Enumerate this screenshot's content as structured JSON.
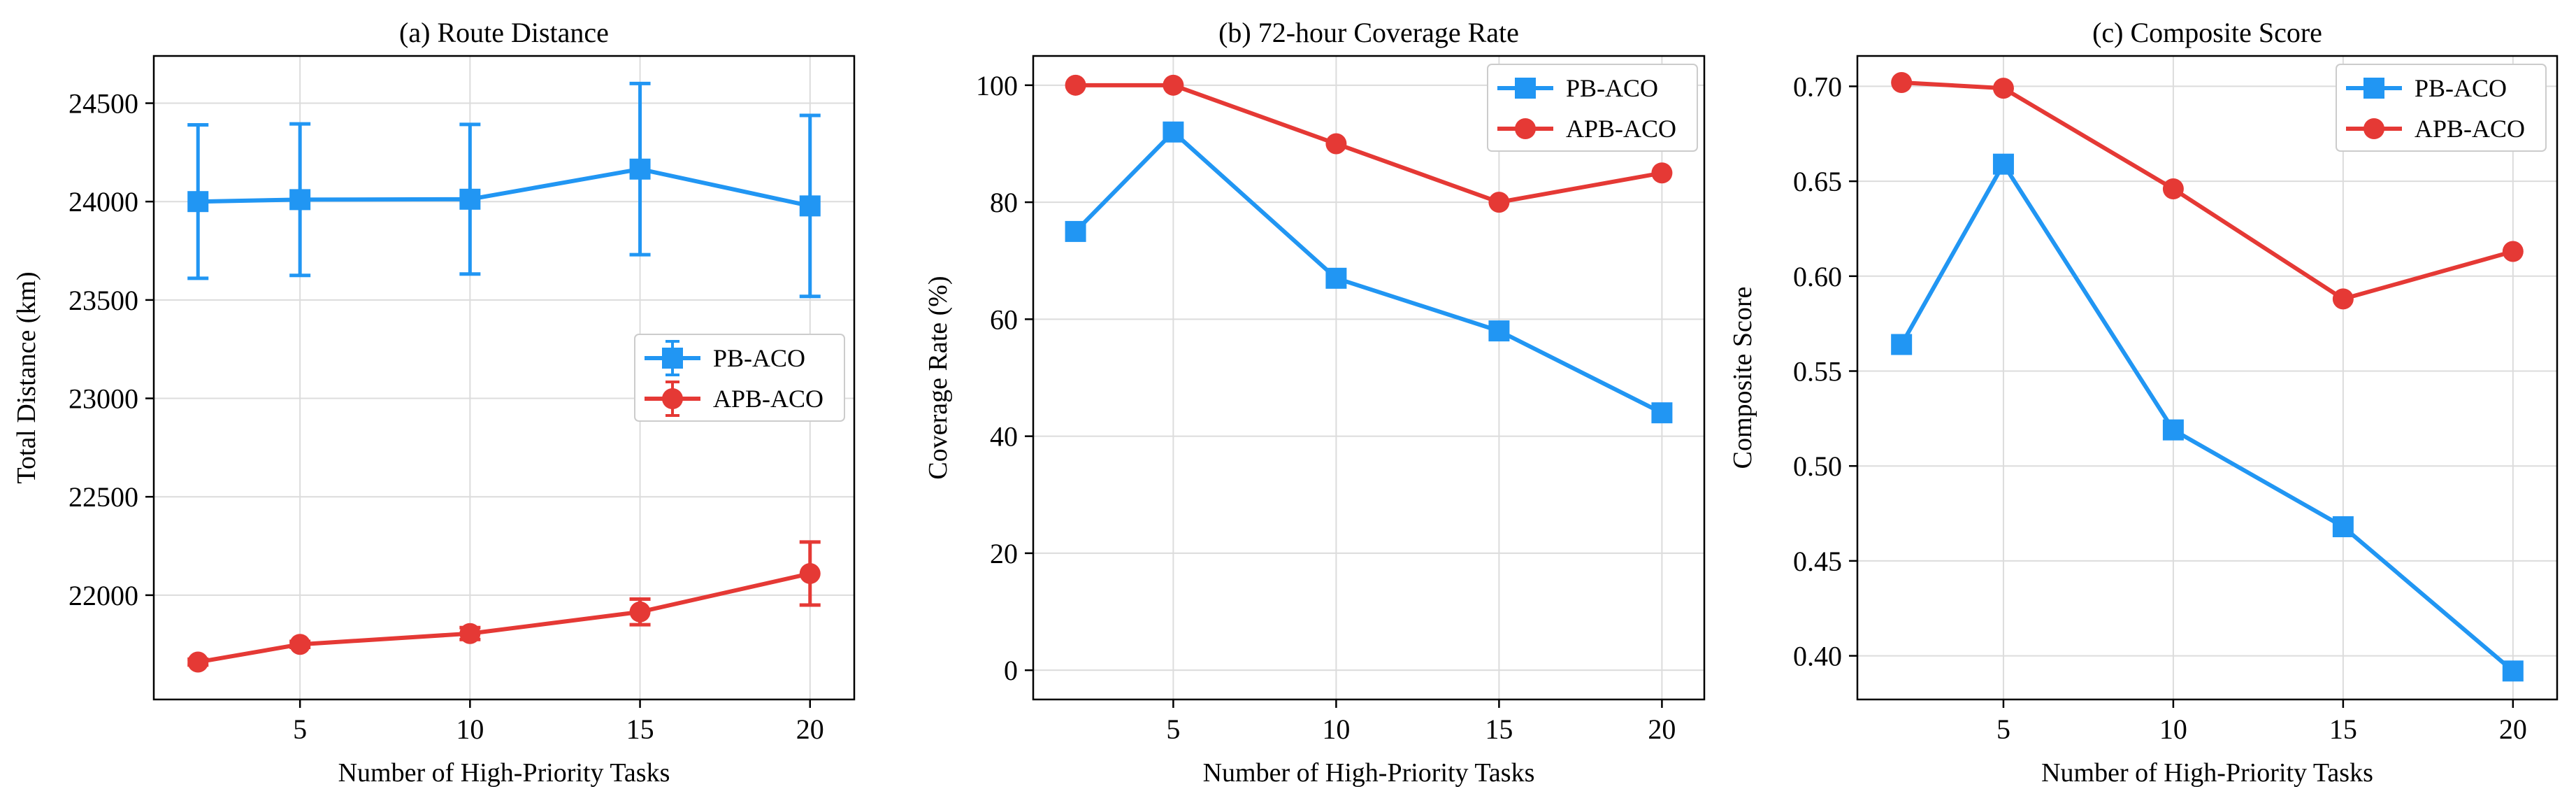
{
  "chart_data": [
    {
      "type": "line",
      "title": "(a) Route Distance",
      "xlabel": "Number of High-Priority Tasks",
      "ylabel": "Total Distance (km)",
      "x": [
        2,
        5,
        10,
        15,
        20
      ],
      "xticks": [
        5,
        10,
        15,
        20
      ],
      "xlim": [
        0.7,
        21.3
      ],
      "yticks": [
        22000,
        22500,
        23000,
        23500,
        24000,
        24500
      ],
      "ylim": [
        21470,
        24740
      ],
      "grid": true,
      "legend_position": "center-right",
      "error_bars": true,
      "series": [
        {
          "name": "PB-ACO",
          "color": "#2196f3",
          "marker": "square",
          "values": [
            24000,
            24010,
            24012,
            24165,
            23978
          ],
          "error": [
            390,
            385,
            380,
            435,
            460
          ]
        },
        {
          "name": "APB-ACO",
          "color": "#e53935",
          "marker": "circle",
          "values": [
            21660,
            21750,
            21805,
            21915,
            22110
          ],
          "error": [
            15,
            15,
            30,
            65,
            160
          ]
        }
      ]
    },
    {
      "type": "line",
      "title": "(b) 72-hour Coverage Rate",
      "xlabel": "Number of High-Priority Tasks",
      "ylabel": "Coverage Rate (%)",
      "x": [
        2,
        5,
        10,
        15,
        20
      ],
      "xticks": [
        5,
        10,
        15,
        20
      ],
      "xlim": [
        0.7,
        21.3
      ],
      "yticks": [
        0,
        20,
        40,
        60,
        80,
        100
      ],
      "ylim": [
        -5,
        105
      ],
      "grid": true,
      "legend_position": "top-right",
      "error_bars": false,
      "series": [
        {
          "name": "PB-ACO",
          "color": "#2196f3",
          "marker": "square",
          "values": [
            75,
            92,
            67,
            58,
            44
          ]
        },
        {
          "name": "APB-ACO",
          "color": "#e53935",
          "marker": "circle",
          "values": [
            100,
            100,
            90,
            80,
            85
          ]
        }
      ]
    },
    {
      "type": "line",
      "title": "(c) Composite Score",
      "xlabel": "Number of High-Priority Tasks",
      "ylabel": "Composite Score",
      "x": [
        2,
        5,
        10,
        15,
        20
      ],
      "xticks": [
        5,
        10,
        15,
        20
      ],
      "xlim": [
        0.7,
        21.3
      ],
      "yticks": [
        0.4,
        0.45,
        0.5,
        0.55,
        0.6,
        0.65,
        0.7
      ],
      "ytick_decimals": 2,
      "ylim": [
        0.377,
        0.716
      ],
      "grid": true,
      "legend_position": "top-right",
      "error_bars": false,
      "series": [
        {
          "name": "PB-ACO",
          "color": "#2196f3",
          "marker": "square",
          "values": [
            0.564,
            0.659,
            0.519,
            0.468,
            0.392
          ]
        },
        {
          "name": "APB-ACO",
          "color": "#e53935",
          "marker": "circle",
          "values": [
            0.702,
            0.699,
            0.646,
            0.588,
            0.613
          ]
        }
      ]
    }
  ]
}
